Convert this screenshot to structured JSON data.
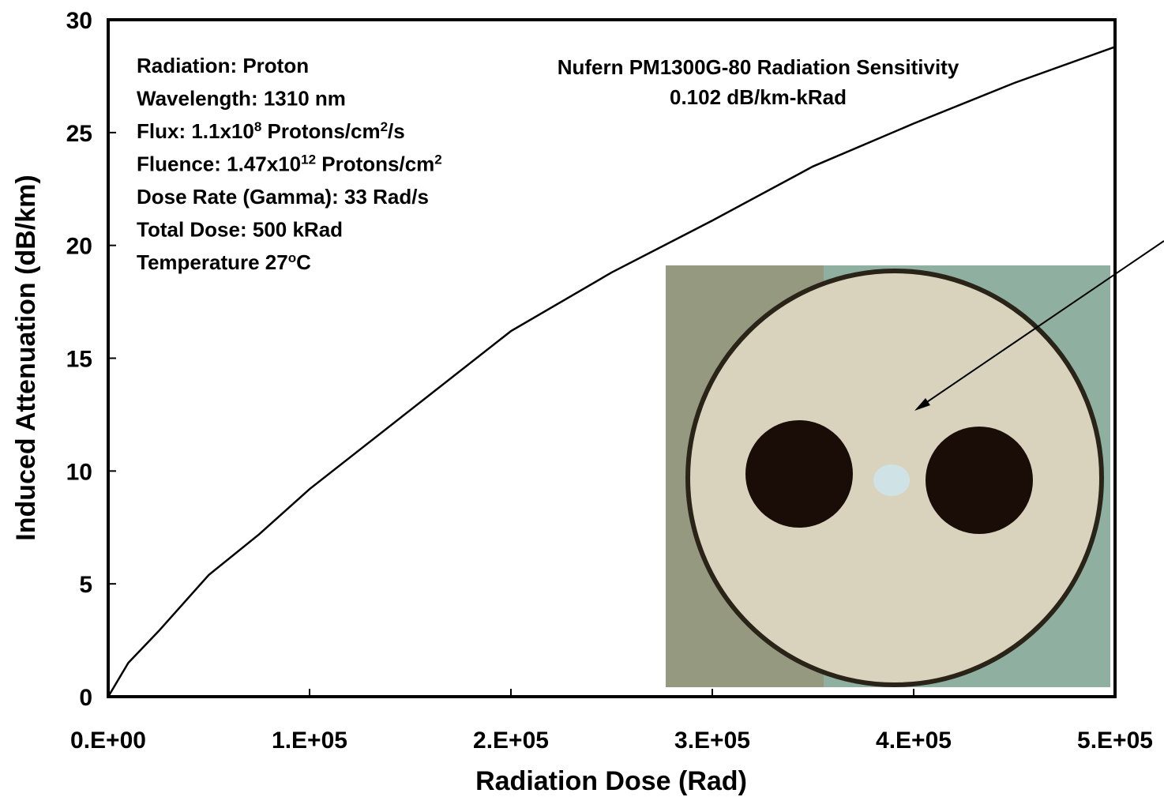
{
  "chart_data": {
    "type": "line",
    "title": "Nufern PM1300G-80 Radiation Sensitivity",
    "subtitle": "0.102 dB/km-kRad",
    "x_label": "Radiation Dose (Rad)",
    "y_label": "Induced Attenuation (dB/km)",
    "annotations": [
      [
        {
          "text": "Radiation: Proton"
        }
      ],
      [
        {
          "text": "Wavelength: 1310 nm"
        }
      ],
      [
        {
          "text": "Flux: 1.1x10"
        },
        {
          "text": "8",
          "sup": true
        },
        {
          "text": " Protons/cm"
        },
        {
          "text": "2",
          "sup": true
        },
        {
          "text": "/s"
        }
      ],
      [
        {
          "text": "Fluence: 1.47x10"
        },
        {
          "text": "12",
          "sup": true
        },
        {
          "text": " Protons/cm"
        },
        {
          "text": "2",
          "sup": true
        }
      ],
      [
        {
          "text": "Dose Rate (Gamma): 33 Rad/s"
        }
      ],
      [
        {
          "text": "Total Dose: 500 kRad"
        }
      ],
      [
        {
          "text": "Temperature 27"
        },
        {
          "text": "o",
          "sup": true
        },
        {
          "text": "C"
        }
      ]
    ],
    "x": [
      0,
      10000,
      25000,
      50000,
      75000,
      100000,
      150000,
      200000,
      250000,
      300000,
      350000,
      400000,
      450000,
      500000
    ],
    "series": [
      {
        "color": "#000000",
        "values": [
          0,
          1.5,
          2.9,
          5.4,
          7.2,
          9.2,
          12.7,
          16.2,
          18.8,
          21.1,
          23.5,
          25.4,
          27.2,
          28.8
        ]
      }
    ],
    "xlim": [
      0,
      500000
    ],
    "ylim": [
      0,
      30
    ],
    "xticks": [
      {
        "value": 0,
        "label": "0.E+00"
      },
      {
        "value": 100000,
        "label": "1.E+05"
      },
      {
        "value": 200000,
        "label": "2.E+05"
      },
      {
        "value": 300000,
        "label": "3.E+05"
      },
      {
        "value": 400000,
        "label": "4.E+05"
      },
      {
        "value": 500000,
        "label": "5.E+05"
      }
    ],
    "yticks": [
      0,
      5,
      10,
      15,
      20,
      25,
      30
    ]
  }
}
